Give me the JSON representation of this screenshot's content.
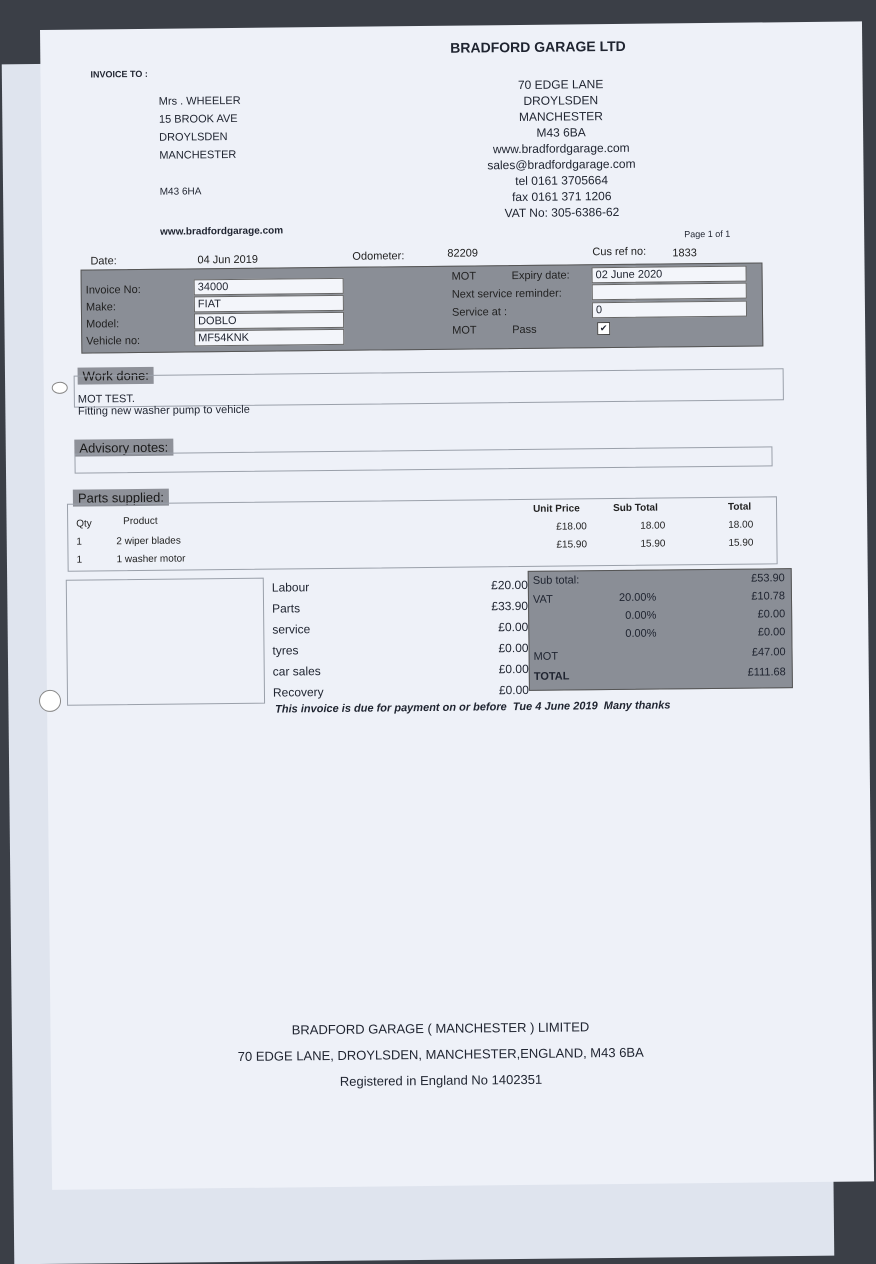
{
  "company": {
    "name": "BRADFORD GARAGE LTD",
    "address": [
      "70 EDGE LANE",
      "DROYLSDEN",
      "MANCHESTER",
      "M43 6BA"
    ],
    "web": "www.bradfordgarage.com",
    "email": "sales@bradfordgarage.com",
    "tel": "tel 0161 3705664",
    "fax": "fax 0161 371 1206",
    "vat": "VAT No: 305-6386-62"
  },
  "invoice_to": {
    "label": "INVOICE TO :",
    "lines": [
      "Mrs . WHEELER",
      "15 BROOK AVE",
      "DROYLSDEN",
      "MANCHESTER"
    ],
    "postcode": "M43 6HA",
    "web": "www.bradfordgarage.com"
  },
  "page": "Page 1 of 1",
  "header": {
    "date_label": "Date:",
    "date": "04 Jun 2019",
    "odometer_label": "Odometer:",
    "odometer": "82209",
    "cusref_label": "Cus ref no:",
    "cusref": "1833"
  },
  "vehicle": {
    "invoice_no_label": "Invoice No:",
    "invoice_no": "34000",
    "make_label": "Make:",
    "make": "FIAT",
    "model_label": "Model:",
    "model": "DOBLO",
    "vehicle_no_label": "Vehicle no:",
    "vehicle_no": "MF54KNK"
  },
  "mot": {
    "mot_label": "MOT",
    "expiry_label": "Expiry date:",
    "expiry": "02 June 2020",
    "next_service_label": "Next service reminder:",
    "next_service": "",
    "service_at_label": "Service at :",
    "service_at": "0",
    "mot2_label": "MOT",
    "pass_label": "Pass",
    "pass_checked": true,
    "check": "✔"
  },
  "work_done": {
    "label": "Work done:",
    "lines": [
      "MOT TEST.",
      "Fitting new washer pump to vehicle"
    ]
  },
  "advisory": {
    "label": "Advisory notes:"
  },
  "parts": {
    "label": "Parts supplied:",
    "headers": {
      "qty": "Qty",
      "product": "Product",
      "unit": "Unit Price",
      "sub": "Sub Total",
      "total": "Total"
    },
    "rows": [
      {
        "qty": "1",
        "product": "2 wiper blades",
        "unit": "£18.00",
        "sub": "18.00",
        "total": "18.00"
      },
      {
        "qty": "1",
        "product": "1 washer motor",
        "unit": "£15.90",
        "sub": "15.90",
        "total": "15.90"
      }
    ]
  },
  "charges": [
    {
      "label": "Labour",
      "value": "£20.00"
    },
    {
      "label": "Parts",
      "value": "£33.90"
    },
    {
      "label": "service",
      "value": "£0.00"
    },
    {
      "label": "tyres",
      "value": "£0.00"
    },
    {
      "label": "car sales",
      "value": "£0.00"
    },
    {
      "label": "Recovery",
      "value": "£0.00"
    }
  ],
  "totals": {
    "subtotal_label": "Sub total:",
    "subtotal": "£53.90",
    "vat_label": "VAT",
    "vat_rate": "20.00%",
    "vat": "£10.78",
    "rate2": "0.00%",
    "val2": "£0.00",
    "rate3": "0.00%",
    "val3": "£0.00",
    "mot_label": "MOT",
    "mot": "£47.00",
    "total_label": "TOTAL",
    "total": "£111.68"
  },
  "due_note": "This invoice is due for payment on or before  Tue 4 June 2019  Many thanks",
  "footer": [
    "BRADFORD GARAGE ( MANCHESTER ) LIMITED",
    "70 EDGE LANE, DROYLSDEN, MANCHESTER,ENGLAND, M43 6BA",
    "Registered in England No 1402351"
  ]
}
